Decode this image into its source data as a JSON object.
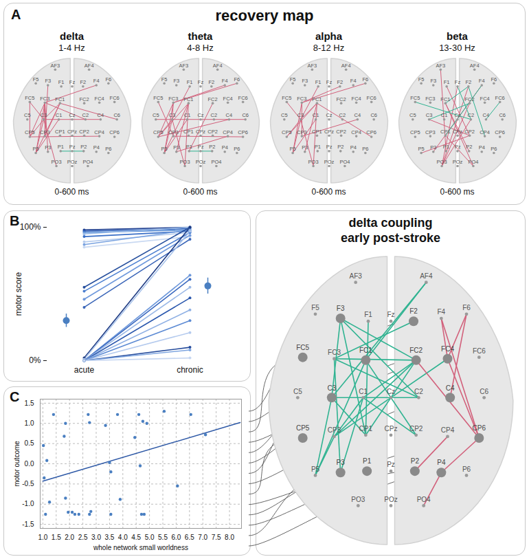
{
  "chart_data": [
    {
      "type": "connectivity_maps",
      "panel": "A",
      "title": "recovery map",
      "electrodes": [
        "AF3",
        "AF4",
        "F5",
        "F3",
        "F1",
        "Fz",
        "F2",
        "F4",
        "F6",
        "FC5",
        "FC3",
        "FC1",
        "FC2",
        "FC4",
        "FC6",
        "C5",
        "C3",
        "C1",
        "Cz",
        "C2",
        "C4",
        "C6",
        "CP5",
        "CP3",
        "CP1",
        "CPz",
        "CP2",
        "CP4",
        "CP6",
        "P5",
        "P3",
        "P1",
        "Pz",
        "P2",
        "P4",
        "P6",
        "PO3",
        "POz",
        "PO4"
      ],
      "maps": [
        {
          "title": "delta",
          "subtitle": "1-4 Hz",
          "caption": "0-600 ms",
          "series": [
            {
              "color": "#d2607b",
              "edges": [
                [
                  "FC5",
                  "C3"
                ],
                [
                  "FC5",
                  "CP5"
                ],
                [
                  "FC3",
                  "C3"
                ],
                [
                  "FC3",
                  "CP5"
                ],
                [
                  "FC3",
                  "P5"
                ],
                [
                  "FC3",
                  "CP3"
                ],
                [
                  "FC1",
                  "P5"
                ],
                [
                  "FC1",
                  "C3"
                ],
                [
                  "C3",
                  "P5"
                ],
                [
                  "C3",
                  "CP5"
                ],
                [
                  "C3",
                  "PO3"
                ],
                [
                  "FC3",
                  "F4"
                ],
                [
                  "C3",
                  "C4"
                ],
                [
                  "FC1",
                  "C6"
                ],
                [
                  "CP5",
                  "CP4"
                ],
                [
                  "CP3",
                  "FC1"
                ],
                [
                  "P3",
                  "FC3"
                ],
                [
                  "F3",
                  "CP3"
                ],
                [
                  "C1",
                  "P5"
                ],
                [
                  "FC3",
                  "C2"
                ]
              ]
            },
            {
              "color": "#2fb391",
              "edges": [
                [
                  "P1",
                  "P2"
                ]
              ]
            }
          ]
        },
        {
          "title": "theta",
          "subtitle": "4-8 Hz",
          "caption": "0-600 ms",
          "series": [
            {
              "color": "#d2607b",
              "edges": [
                [
                  "FC3",
                  "F6"
                ],
                [
                  "FC3",
                  "F4"
                ],
                [
                  "FC3",
                  "C3"
                ],
                [
                  "FC3",
                  "CP5"
                ],
                [
                  "FC3",
                  "P5"
                ],
                [
                  "C3",
                  "P5"
                ],
                [
                  "C3",
                  "CP5"
                ],
                [
                  "FC1",
                  "CP5"
                ],
                [
                  "FC1",
                  "P5"
                ],
                [
                  "C3",
                  "PO3"
                ],
                [
                  "FC1",
                  "P3"
                ],
                [
                  "C5",
                  "C6"
                ],
                [
                  "CP5",
                  "C4"
                ],
                [
                  "CP3",
                  "CP6"
                ],
                [
                  "P3",
                  "CP4"
                ],
                [
                  "PO3",
                  "FC1"
                ],
                [
                  "F1",
                  "C3"
                ],
                [
                  "FC5",
                  "CP3"
                ],
                [
                  "C1",
                  "P5"
                ],
                [
                  "P1",
                  "FC2"
                ]
              ]
            },
            {
              "color": "#2fb391",
              "edges": [
                [
                  "P1",
                  "P2"
                ]
              ]
            }
          ]
        },
        {
          "title": "alpha",
          "subtitle": "8-12 Hz",
          "caption": "0-600 ms",
          "series": [
            {
              "color": "#d2607b",
              "edges": [
                [
                  "FC3",
                  "F6"
                ],
                [
                  "FC3",
                  "F2"
                ],
                [
                  "FC1",
                  "C3"
                ],
                [
                  "FC3",
                  "P5"
                ],
                [
                  "C3",
                  "CP5"
                ],
                [
                  "C3",
                  "P5"
                ],
                [
                  "FC1",
                  "PO3"
                ],
                [
                  "C3",
                  "PO3"
                ],
                [
                  "FC1",
                  "CP6"
                ],
                [
                  "CP3",
                  "C4"
                ],
                [
                  "CP5",
                  "FC1"
                ],
                [
                  "F1",
                  "C3"
                ],
                [
                  "FC3",
                  "CP3"
                ],
                [
                  "P3",
                  "FC1"
                ],
                [
                  "C1",
                  "P5"
                ],
                [
                  "FC5",
                  "C3"
                ]
              ]
            }
          ]
        },
        {
          "title": "beta",
          "subtitle": "13-30 Hz",
          "caption": "0-600 ms",
          "series": [
            {
              "color": "#d2607b",
              "edges": [
                [
                  "AF3",
                  "P1"
                ],
                [
                  "F2",
                  "PO3"
                ],
                [
                  "FC2",
                  "PO3"
                ],
                [
                  "F4",
                  "P3"
                ],
                [
                  "C2",
                  "PO3"
                ],
                [
                  "FC1",
                  "PO4"
                ],
                [
                  "CP2",
                  "P5"
                ],
                [
                  "C3",
                  "CP2"
                ],
                [
                  "CP1",
                  "PO4"
                ],
                [
                  "FC1",
                  "P2"
                ],
                [
                  "F1",
                  "CP2"
                ],
                [
                  "Fz",
                  "PO3"
                ]
              ]
            },
            {
              "color": "#2fb391",
              "edges": [
                [
                  "FC5",
                  "C2"
                ],
                [
                  "FC1",
                  "F2"
                ],
                [
                  "F2",
                  "CP4"
                ],
                [
                  "Fz",
                  "C2"
                ],
                [
                  "FC6",
                  "C4"
                ],
                [
                  "CP1",
                  "F4"
                ],
                [
                  "C3",
                  "FC2"
                ]
              ]
            }
          ]
        }
      ]
    },
    {
      "type": "slope",
      "panel": "B",
      "categories": [
        "acute",
        "chronic"
      ],
      "ylabel": "motor score",
      "ylim": [
        0,
        100
      ],
      "yticks": [
        {
          "value": 0,
          "label": "0%"
        },
        {
          "value": 100,
          "label": "100%"
        }
      ],
      "values": [
        [
          98,
          100
        ],
        [
          97,
          99
        ],
        [
          96,
          98
        ],
        [
          95,
          100
        ],
        [
          93,
          97
        ],
        [
          89,
          96
        ],
        [
          87,
          98
        ],
        [
          85,
          93
        ],
        [
          55,
          100
        ],
        [
          52,
          96
        ],
        [
          46,
          94
        ],
        [
          40,
          91
        ],
        [
          2,
          100
        ],
        [
          1,
          97
        ],
        [
          0,
          64
        ],
        [
          0,
          61
        ],
        [
          0,
          55
        ],
        [
          0,
          47
        ],
        [
          0,
          38
        ],
        [
          0,
          30
        ],
        [
          0,
          21
        ],
        [
          0,
          10
        ],
        [
          0,
          8
        ],
        [
          0,
          2
        ]
      ],
      "colors": [
        "#1f3f8f",
        "#2a5cb8",
        "#5b8fd6",
        "#9bbce8",
        "#3a6fc7",
        "#b7cdee",
        "#7aa3e0",
        "#c9d9f2",
        "#27509e",
        "#4c7fd0",
        "#6f99dc",
        "#3b66b8",
        "#1d3a82",
        "#a9c3ea",
        "#6d98db",
        "#3c6ac0",
        "#9ab8e6",
        "#2a57ad",
        "#8fb0e4",
        "#5d8bd4",
        "#b4caee",
        "#244b9c",
        "#7ea5e0",
        "#c6d6f1"
      ],
      "mean": {
        "values": [
          30,
          56
        ],
        "error": [
          5,
          6
        ],
        "color": "#4a7fc1"
      }
    },
    {
      "type": "scatter",
      "panel": "C",
      "xlabel": "whole network small worldness",
      "ylabel": "motor outcome",
      "x": [
        1.02,
        1.05,
        1.1,
        1.15,
        1.25,
        1.4,
        1.8,
        1.85,
        1.85,
        1.95,
        2.1,
        2.2,
        2.35,
        2.7,
        2.75,
        2.75,
        2.8,
        3.35,
        3.5,
        3.55,
        3.55,
        3.8,
        3.9,
        4.45,
        4.6,
        4.65,
        4.75,
        4.7,
        4.8,
        4.9,
        5.55,
        6.05,
        6.55,
        7.1
      ],
      "values": [
        0.45,
        -0.35,
        -1.25,
        0.08,
        -0.95,
        1.22,
        0.68,
        1.0,
        -0.85,
        -1.2,
        -1.2,
        -1.25,
        -1.25,
        1.22,
        1.02,
        -1.25,
        -1.18,
        0.95,
        0.03,
        -0.2,
        -1.25,
        1.22,
        -0.88,
        0.65,
        1.22,
        -0.05,
        1.05,
        -1.25,
        -1.25,
        1.0,
        1.3,
        -0.55,
        1.22,
        0.72
      ],
      "color": "#4a7fc1",
      "fit": {
        "x": [
          1.0,
          8.4
        ],
        "y": [
          -0.43,
          1.02
        ],
        "color": "#2d58a6"
      },
      "xlim": [
        0.9,
        8.45
      ],
      "ylim": [
        -1.6,
        1.6
      ],
      "xticks": [
        {
          "value": 1,
          "label": "1.0"
        },
        1.5,
        {
          "value": 2,
          "label": "2.0"
        },
        2.5,
        {
          "value": 3,
          "label": "3.0"
        },
        3.5,
        {
          "value": 4,
          "label": "4.0"
        },
        4.5,
        {
          "value": 5,
          "label": "5.0"
        },
        5.5,
        {
          "value": 6,
          "label": "6.0"
        },
        6.5,
        {
          "value": 7,
          "label": "7.0"
        },
        7.5,
        {
          "value": 8,
          "label": "8.0"
        }
      ],
      "yticks": [
        -1.5,
        {
          "value": -1,
          "label": "-1.0"
        },
        -0.5,
        {
          "value": 0,
          "label": "0.0"
        },
        0.5,
        {
          "value": 1,
          "label": "1.0"
        },
        1.5
      ],
      "grid": true
    },
    {
      "type": "connectivity_map",
      "title": "delta coupling early post-stroke",
      "electrodes": [
        "AF3",
        "AF4",
        "F5",
        "F3",
        "F1",
        "Fz",
        "F2",
        "F4",
        "F6",
        "FC5",
        "FC3",
        "FC1",
        "FC2",
        "FC4",
        "FC6",
        "C5",
        "C3",
        "C1",
        "Cz",
        "C2",
        "C4",
        "C6",
        "CP5",
        "CP3",
        "CP1",
        "CPz",
        "CP2",
        "CP4",
        "CP6",
        "P5",
        "P3",
        "P1",
        "Pz",
        "P2",
        "P4",
        "P6",
        "PO3",
        "POz",
        "PO4"
      ],
      "hubs": [
        "F3",
        "F2",
        "FC5",
        "FC1",
        "FC2",
        "FC4",
        "C3",
        "C4",
        "CP5",
        "CP6",
        "P1",
        "P2",
        "P3",
        "P4"
      ],
      "series": [
        {
          "color": "#2fb391",
          "edges": [
            [
              "F3",
              "CP1"
            ],
            [
              "F3",
              "C2"
            ],
            [
              "AF4",
              "C3"
            ],
            [
              "AF4",
              "FC1"
            ],
            [
              "F2",
              "FC3"
            ],
            [
              "FC3",
              "C2"
            ],
            [
              "FC3",
              "FC2"
            ],
            [
              "FC1",
              "CP2"
            ],
            [
              "C3",
              "CP1"
            ],
            [
              "C3",
              "C2"
            ],
            [
              "CP3",
              "FC2"
            ],
            [
              "CP3",
              "P5"
            ],
            [
              "P5",
              "FC1"
            ],
            [
              "P3",
              "FC3"
            ],
            [
              "P3",
              "C1"
            ],
            [
              "CP1",
              "FC2"
            ],
            [
              "CP2",
              "C1"
            ],
            [
              "C3",
              "P5"
            ],
            [
              "F3",
              "C3"
            ],
            [
              "FC4",
              "CP3"
            ],
            [
              "F1",
              "CP1"
            ],
            [
              "FC2",
              "C1"
            ],
            [
              "C1",
              "CP3"
            ],
            [
              "F3",
              "FC2"
            ]
          ]
        },
        {
          "color": "#d2607b",
          "edges": [
            [
              "F4",
              "CP6"
            ],
            [
              "F6",
              "C4"
            ],
            [
              "FC4",
              "CP6"
            ],
            [
              "FC4",
              "F6"
            ],
            [
              "CP6",
              "P4"
            ],
            [
              "CP4",
              "P2"
            ],
            [
              "FC2",
              "CP6"
            ],
            [
              "P4",
              "PO4"
            ],
            [
              "F4",
              "FC4"
            ]
          ]
        }
      ]
    }
  ]
}
